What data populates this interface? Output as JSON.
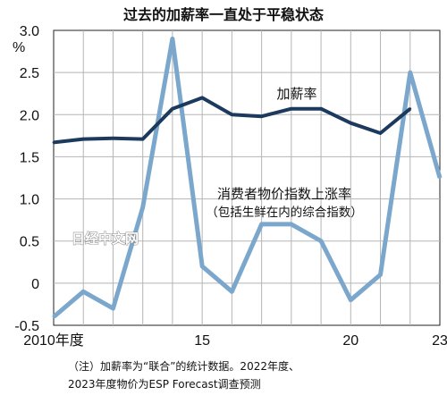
{
  "title": "过去的加薪率一直处于平稳状态",
  "chart_data": {
    "type": "line",
    "y_unit": "%",
    "ylim": [
      -0.5,
      3.0
    ],
    "yticks": [
      "3.0",
      "2.5",
      "2.0",
      "1.5",
      "1.0",
      "0.5",
      "0",
      "-0.5"
    ],
    "ytick_values": [
      3.0,
      2.5,
      2.0,
      1.5,
      1.0,
      0.5,
      0,
      -0.5
    ],
    "xlim": [
      2010,
      2023
    ],
    "xticks": [
      {
        "x": 2010,
        "label": "2010年度"
      },
      {
        "x": 2015,
        "label": "15"
      },
      {
        "x": 2020,
        "label": "20"
      },
      {
        "x": 2023,
        "label": "23"
      }
    ],
    "grid": true,
    "series": [
      {
        "name": "加薪率",
        "color": "#1c3a5e",
        "x": [
          2010,
          2011,
          2012,
          2013,
          2014,
          2015,
          2016,
          2017,
          2018,
          2019,
          2020,
          2021,
          2022
        ],
        "values": [
          1.67,
          1.71,
          1.72,
          1.71,
          2.07,
          2.2,
          2.0,
          1.98,
          2.07,
          2.07,
          1.9,
          1.78,
          2.07
        ]
      },
      {
        "name": "消费者物价指数上涨率",
        "name_note": "（包括生鲜在内的综合指数）",
        "color": "#7ba7cc",
        "x": [
          2010,
          2011,
          2012,
          2013,
          2014,
          2015,
          2016,
          2017,
          2018,
          2019,
          2020,
          2021,
          2022,
          2023
        ],
        "values": [
          -0.4,
          -0.1,
          -0.3,
          0.9,
          2.9,
          0.2,
          -0.1,
          0.7,
          0.7,
          0.5,
          -0.2,
          0.1,
          2.5,
          1.25
        ]
      }
    ]
  },
  "watermark": "日经中文网",
  "note_lines": [
    "（注）加薪率为“联合”的统计数据。2022年度、",
    "2023年度物价为ESP Forecast调查预测"
  ]
}
